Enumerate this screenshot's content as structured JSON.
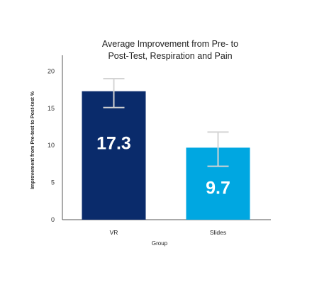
{
  "chart_data": {
    "type": "bar",
    "title_lines": [
      "Average Improvement from Pre- to",
      "Post-Test, Respiration and Pain"
    ],
    "xlabel": "Group",
    "ylabel": "Improvement from Pre-test to Post-test %",
    "categories": [
      "VR",
      "Slides"
    ],
    "values": [
      17.3,
      9.7
    ],
    "value_labels": [
      "17.3",
      "9.7"
    ],
    "error_bars": [
      {
        "low": 15.1,
        "high": 19.0
      },
      {
        "low": 7.2,
        "high": 11.8
      }
    ],
    "bar_colors": [
      "#0a2b6b",
      "#00a7e1"
    ],
    "ylim": [
      0,
      21
    ],
    "yticks": [
      0,
      5,
      10,
      15,
      20
    ],
    "grid": false
  }
}
